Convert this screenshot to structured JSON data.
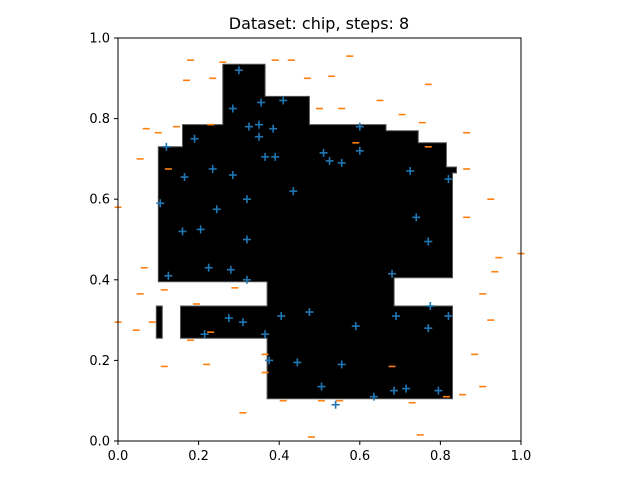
{
  "chart_data": {
    "type": "scatter",
    "title": "Dataset: chip, steps: 8",
    "xlim": [
      0.0,
      1.0
    ],
    "ylim": [
      0.0,
      1.0
    ],
    "x_ticks": [
      "0.0",
      "0.2",
      "0.4",
      "0.6",
      "0.8",
      "1.0"
    ],
    "y_ticks": [
      "0.0",
      "0.2",
      "0.4",
      "0.6",
      "0.8",
      "1.0"
    ],
    "grid": false,
    "colors": {
      "positive": "#1f77b4",
      "negative": "#ff7f0e",
      "region": "#000000"
    },
    "region_polygons": [
      [
        [
          0.26,
          0.935
        ],
        [
          0.365,
          0.935
        ],
        [
          0.365,
          0.855
        ],
        [
          0.475,
          0.855
        ],
        [
          0.475,
          0.785
        ],
        [
          0.665,
          0.785
        ],
        [
          0.665,
          0.77
        ],
        [
          0.745,
          0.77
        ],
        [
          0.745,
          0.74
        ],
        [
          0.815,
          0.74
        ],
        [
          0.815,
          0.68
        ],
        [
          0.84,
          0.68
        ],
        [
          0.84,
          0.665
        ],
        [
          0.83,
          0.665
        ],
        [
          0.83,
          0.405
        ],
        [
          0.685,
          0.405
        ],
        [
          0.685,
          0.335
        ],
        [
          0.83,
          0.335
        ],
        [
          0.83,
          0.105
        ],
        [
          0.37,
          0.105
        ],
        [
          0.37,
          0.255
        ],
        [
          0.155,
          0.255
        ],
        [
          0.155,
          0.335
        ],
        [
          0.37,
          0.335
        ],
        [
          0.37,
          0.395
        ],
        [
          0.1,
          0.395
        ],
        [
          0.1,
          0.73
        ],
        [
          0.16,
          0.73
        ],
        [
          0.16,
          0.785
        ],
        [
          0.26,
          0.785
        ]
      ],
      [
        [
          0.095,
          0.335
        ],
        [
          0.11,
          0.335
        ],
        [
          0.11,
          0.255
        ],
        [
          0.095,
          0.255
        ]
      ]
    ],
    "series": [
      {
        "marker": "plus",
        "points": [
          [
            0.3,
            0.92
          ],
          [
            0.41,
            0.845
          ],
          [
            0.355,
            0.84
          ],
          [
            0.285,
            0.825
          ],
          [
            0.35,
            0.785
          ],
          [
            0.325,
            0.78
          ],
          [
            0.385,
            0.775
          ],
          [
            0.35,
            0.755
          ],
          [
            0.19,
            0.75
          ],
          [
            0.12,
            0.73
          ],
          [
            0.6,
            0.78
          ],
          [
            0.365,
            0.705
          ],
          [
            0.39,
            0.705
          ],
          [
            0.51,
            0.715
          ],
          [
            0.525,
            0.695
          ],
          [
            0.555,
            0.69
          ],
          [
            0.6,
            0.72
          ],
          [
            0.235,
            0.675
          ],
          [
            0.165,
            0.655
          ],
          [
            0.285,
            0.66
          ],
          [
            0.725,
            0.67
          ],
          [
            0.82,
            0.65
          ],
          [
            0.435,
            0.62
          ],
          [
            0.105,
            0.59
          ],
          [
            0.32,
            0.6
          ],
          [
            0.245,
            0.575
          ],
          [
            0.74,
            0.555
          ],
          [
            0.16,
            0.52
          ],
          [
            0.205,
            0.525
          ],
          [
            0.32,
            0.5
          ],
          [
            0.77,
            0.495
          ],
          [
            0.225,
            0.43
          ],
          [
            0.28,
            0.425
          ],
          [
            0.125,
            0.41
          ],
          [
            0.32,
            0.4
          ],
          [
            0.68,
            0.415
          ],
          [
            0.775,
            0.335
          ],
          [
            0.475,
            0.32
          ],
          [
            0.82,
            0.31
          ],
          [
            0.405,
            0.31
          ],
          [
            0.275,
            0.305
          ],
          [
            0.31,
            0.295
          ],
          [
            0.69,
            0.31
          ],
          [
            0.59,
            0.285
          ],
          [
            0.77,
            0.28
          ],
          [
            0.365,
            0.265
          ],
          [
            0.215,
            0.265
          ],
          [
            0.375,
            0.2
          ],
          [
            0.445,
            0.195
          ],
          [
            0.555,
            0.19
          ],
          [
            0.505,
            0.135
          ],
          [
            0.685,
            0.125
          ],
          [
            0.715,
            0.13
          ],
          [
            0.795,
            0.125
          ],
          [
            0.635,
            0.11
          ],
          [
            0.54,
            0.09
          ]
        ]
      },
      {
        "marker": "hline",
        "points": [
          [
            0.18,
            0.945
          ],
          [
            0.26,
            0.94
          ],
          [
            0.39,
            0.945
          ],
          [
            0.43,
            0.945
          ],
          [
            0.575,
            0.955
          ],
          [
            0.17,
            0.895
          ],
          [
            0.235,
            0.9
          ],
          [
            0.47,
            0.9
          ],
          [
            0.53,
            0.905
          ],
          [
            0.77,
            0.885
          ],
          [
            0.5,
            0.825
          ],
          [
            0.555,
            0.825
          ],
          [
            0.65,
            0.845
          ],
          [
            0.705,
            0.81
          ],
          [
            0.755,
            0.79
          ],
          [
            0.07,
            0.775
          ],
          [
            0.145,
            0.78
          ],
          [
            0.23,
            0.785
          ],
          [
            0.865,
            0.765
          ],
          [
            0.1,
            0.765
          ],
          [
            0.59,
            0.74
          ],
          [
            0.77,
            0.73
          ],
          [
            0.055,
            0.7
          ],
          [
            0.125,
            0.675
          ],
          [
            0.865,
            0.675
          ],
          [
            0.0,
            0.58
          ],
          [
            0.925,
            0.6
          ],
          [
            0.865,
            0.555
          ],
          [
            0.945,
            0.455
          ],
          [
            1.0,
            0.465
          ],
          [
            0.065,
            0.43
          ],
          [
            0.935,
            0.42
          ],
          [
            0.055,
            0.365
          ],
          [
            0.115,
            0.375
          ],
          [
            0.905,
            0.365
          ],
          [
            0.195,
            0.34
          ],
          [
            0.29,
            0.38
          ],
          [
            0.0,
            0.295
          ],
          [
            0.045,
            0.275
          ],
          [
            0.085,
            0.295
          ],
          [
            0.925,
            0.3
          ],
          [
            0.18,
            0.25
          ],
          [
            0.23,
            0.27
          ],
          [
            0.115,
            0.185
          ],
          [
            0.22,
            0.19
          ],
          [
            0.365,
            0.215
          ],
          [
            0.365,
            0.17
          ],
          [
            0.68,
            0.185
          ],
          [
            0.885,
            0.215
          ],
          [
            0.905,
            0.135
          ],
          [
            0.855,
            0.115
          ],
          [
            0.815,
            0.11
          ],
          [
            0.41,
            0.1
          ],
          [
            0.505,
            0.1
          ],
          [
            0.55,
            0.1
          ],
          [
            0.73,
            0.095
          ],
          [
            0.31,
            0.07
          ],
          [
            0.48,
            0.01
          ],
          [
            0.75,
            0.015
          ]
        ]
      }
    ]
  }
}
